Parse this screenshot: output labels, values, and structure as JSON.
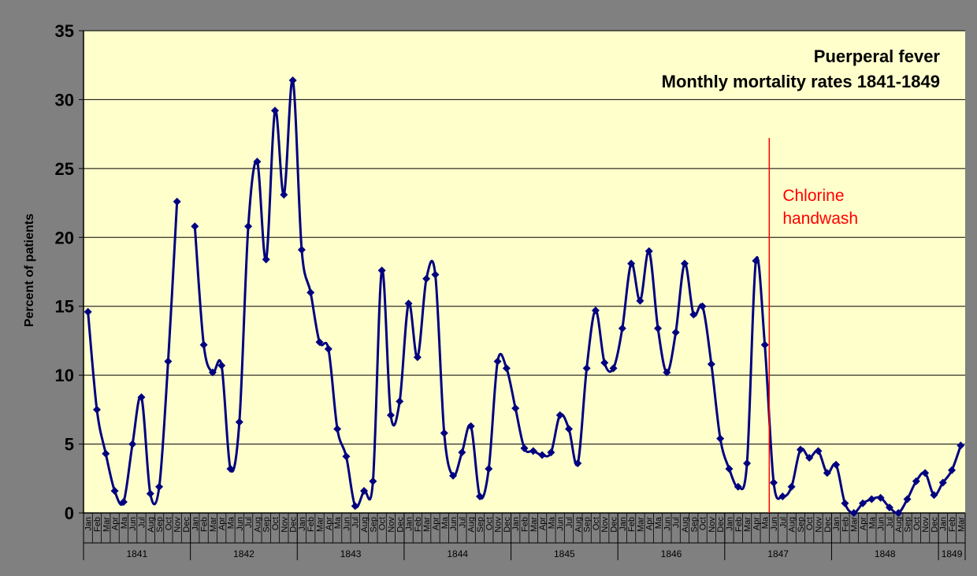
{
  "chart_data": {
    "type": "line",
    "title": "Puerperal fever",
    "subtitle": "Monthly mortality rates 1841-1849",
    "ylabel": "Percent of patients",
    "xlabel": "",
    "ylim": [
      0,
      35
    ],
    "yticks": [
      0,
      5,
      10,
      15,
      20,
      25,
      30,
      35
    ],
    "grid": true,
    "legend": "none",
    "colors": {
      "background": "#808080",
      "plot_area": "#FFFFCC",
      "line": "#000080",
      "marker": "#000080",
      "gridline": "#000000",
      "annotation": "#FF0000"
    },
    "annotation": {
      "text_line1": "Chlorine",
      "text_line2": "handwash",
      "index": 77
    },
    "month_labels": [
      "Jan",
      "Feb",
      "Mar",
      "Apr",
      "Ma",
      "Jun",
      "Jul",
      "Aug",
      "Sep",
      "Oct",
      "Nov",
      "Dec"
    ],
    "year_groups": [
      {
        "label": "1841",
        "count": 12
      },
      {
        "label": "1842",
        "count": 12
      },
      {
        "label": "1843",
        "count": 12
      },
      {
        "label": "1844",
        "count": 12
      },
      {
        "label": "1845",
        "count": 12
      },
      {
        "label": "1846",
        "count": 12
      },
      {
        "label": "1847",
        "count": 12
      },
      {
        "label": "1848",
        "count": 12
      },
      {
        "label": "1849",
        "count": 3
      }
    ],
    "series": [
      {
        "values": [
          {
            "i": 0,
            "v": 14.6
          },
          {
            "i": 1,
            "v": 7.5
          },
          {
            "i": 2,
            "v": 4.3
          },
          {
            "i": 3,
            "v": 1.6
          },
          {
            "i": 4,
            "v": 0.8
          },
          {
            "i": 5,
            "v": 5.0
          },
          {
            "i": 6,
            "v": 8.4
          },
          {
            "i": 7,
            "v": 1.4
          },
          {
            "i": 8,
            "v": 1.9
          },
          {
            "i": 9,
            "v": 11.0
          },
          {
            "i": 10,
            "v": 22.6
          },
          {
            "i": 12,
            "v": 20.8
          },
          {
            "i": 13,
            "v": 12.2
          },
          {
            "i": 14,
            "v": 10.2
          },
          {
            "i": 15,
            "v": 10.7
          },
          {
            "i": 16,
            "v": 3.2
          },
          {
            "i": 17,
            "v": 6.6
          },
          {
            "i": 18,
            "v": 20.8
          },
          {
            "i": 19,
            "v": 25.5
          },
          {
            "i": 20,
            "v": 18.4
          },
          {
            "i": 21,
            "v": 29.2
          },
          {
            "i": 22,
            "v": 23.1
          },
          {
            "i": 23,
            "v": 31.4
          },
          {
            "i": 24,
            "v": 19.1
          },
          {
            "i": 25,
            "v": 16.0
          },
          {
            "i": 26,
            "v": 12.4
          },
          {
            "i": 27,
            "v": 11.9
          },
          {
            "i": 28,
            "v": 6.1
          },
          {
            "i": 29,
            "v": 4.1
          },
          {
            "i": 30,
            "v": 0.5
          },
          {
            "i": 31,
            "v": 1.6
          },
          {
            "i": 32,
            "v": 2.3
          },
          {
            "i": 33,
            "v": 17.6
          },
          {
            "i": 34,
            "v": 7.1
          },
          {
            "i": 35,
            "v": 8.1
          },
          {
            "i": 36,
            "v": 15.2
          },
          {
            "i": 37,
            "v": 11.3
          },
          {
            "i": 38,
            "v": 17.0
          },
          {
            "i": 39,
            "v": 17.3
          },
          {
            "i": 40,
            "v": 5.8
          },
          {
            "i": 41,
            "v": 2.7
          },
          {
            "i": 42,
            "v": 4.4
          },
          {
            "i": 43,
            "v": 6.3
          },
          {
            "i": 44,
            "v": 1.2
          },
          {
            "i": 45,
            "v": 3.2
          },
          {
            "i": 46,
            "v": 11.0
          },
          {
            "i": 47,
            "v": 10.5
          },
          {
            "i": 48,
            "v": 7.6
          },
          {
            "i": 49,
            "v": 4.7
          },
          {
            "i": 50,
            "v": 4.5
          },
          {
            "i": 51,
            "v": 4.2
          },
          {
            "i": 52,
            "v": 4.4
          },
          {
            "i": 53,
            "v": 7.1
          },
          {
            "i": 54,
            "v": 6.1
          },
          {
            "i": 55,
            "v": 3.6
          },
          {
            "i": 56,
            "v": 10.5
          },
          {
            "i": 57,
            "v": 14.7
          },
          {
            "i": 58,
            "v": 10.9
          },
          {
            "i": 59,
            "v": 10.5
          },
          {
            "i": 60,
            "v": 13.4
          },
          {
            "i": 61,
            "v": 18.1
          },
          {
            "i": 62,
            "v": 15.4
          },
          {
            "i": 63,
            "v": 19.0
          },
          {
            "i": 64,
            "v": 13.4
          },
          {
            "i": 65,
            "v": 10.2
          },
          {
            "i": 66,
            "v": 13.1
          },
          {
            "i": 67,
            "v": 18.1
          },
          {
            "i": 68,
            "v": 14.4
          },
          {
            "i": 69,
            "v": 15.0
          },
          {
            "i": 70,
            "v": 10.8
          },
          {
            "i": 71,
            "v": 5.4
          },
          {
            "i": 72,
            "v": 3.2
          },
          {
            "i": 73,
            "v": 1.9
          },
          {
            "i": 74,
            "v": 3.6
          },
          {
            "i": 75,
            "v": 18.3
          },
          {
            "i": 76,
            "v": 12.2
          },
          {
            "i": 77,
            "v": 2.2
          },
          {
            "i": 78,
            "v": 1.2
          },
          {
            "i": 79,
            "v": 1.9
          },
          {
            "i": 80,
            "v": 4.6
          },
          {
            "i": 81,
            "v": 4.0
          },
          {
            "i": 82,
            "v": 4.5
          },
          {
            "i": 83,
            "v": 2.9
          },
          {
            "i": 84,
            "v": 3.5
          },
          {
            "i": 85,
            "v": 0.7
          },
          {
            "i": 86,
            "v": 0.0
          },
          {
            "i": 87,
            "v": 0.7
          },
          {
            "i": 88,
            "v": 1.0
          },
          {
            "i": 89,
            "v": 1.1
          },
          {
            "i": 90,
            "v": 0.4
          },
          {
            "i": 91,
            "v": 0.0
          },
          {
            "i": 92,
            "v": 1.0
          },
          {
            "i": 93,
            "v": 2.3
          },
          {
            "i": 94,
            "v": 2.9
          },
          {
            "i": 95,
            "v": 1.3
          },
          {
            "i": 96,
            "v": 2.2
          },
          {
            "i": 97,
            "v": 3.1
          },
          {
            "i": 98,
            "v": 4.9
          }
        ]
      }
    ]
  }
}
